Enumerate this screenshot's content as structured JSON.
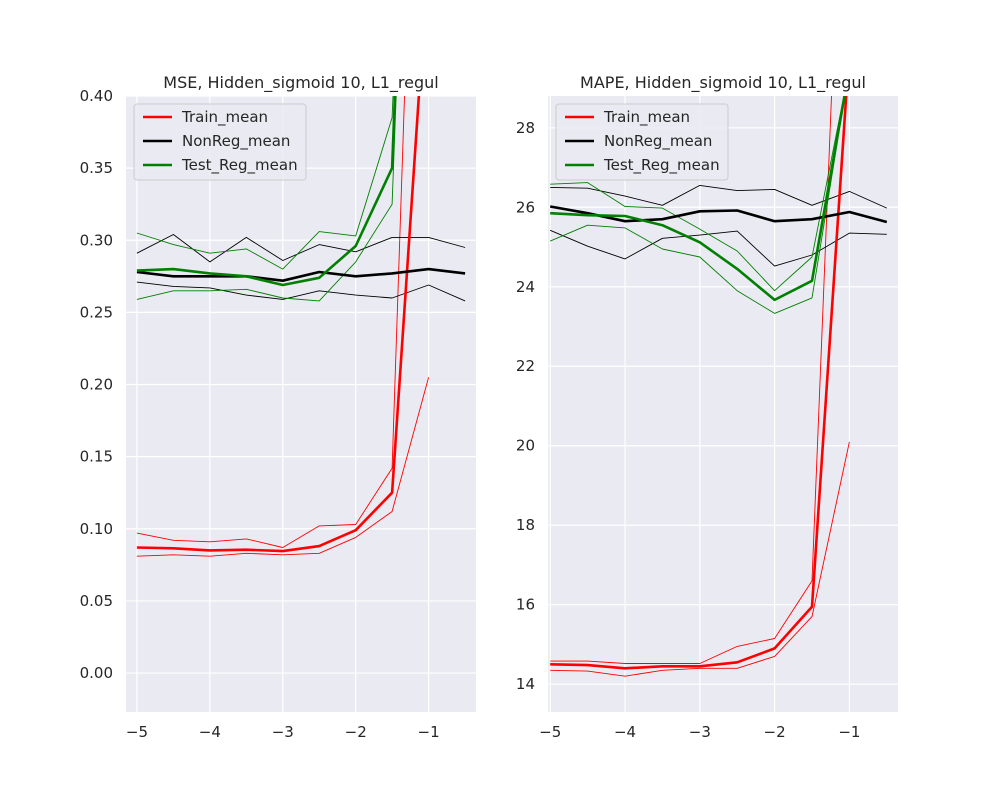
{
  "colors": {
    "background": "#ffffff",
    "plot_area": "#eaeaf2",
    "grid": "#ffffff",
    "text": "#262626",
    "train": "#ff0000",
    "nonreg": "#000000",
    "test": "#008000"
  },
  "chart_data": [
    {
      "type": "line",
      "title": "MSE, Hidden_sigmoid 10, L1_regul",
      "xlabel": "",
      "ylabel": "",
      "xlim": [
        -5.15,
        -0.35
      ],
      "ylim": [
        -0.027,
        0.4
      ],
      "xticks": [
        -5,
        -4,
        -3,
        -2,
        -1
      ],
      "xtick_labels": [
        "−5",
        "−4",
        "−3",
        "−2",
        "−1"
      ],
      "yticks": [
        0.0,
        0.05,
        0.1,
        0.15,
        0.2,
        0.25,
        0.3,
        0.35,
        0.4
      ],
      "ytick_labels": [
        "0.00",
        "0.05",
        "0.10",
        "0.15",
        "0.20",
        "0.25",
        "0.30",
        "0.35",
        "0.40"
      ],
      "grid": true,
      "legend_position": "top-left",
      "x": [
        -5,
        -4.5,
        -4,
        -3.5,
        -3,
        -2.5,
        -2,
        -1.5,
        -1,
        -0.5
      ],
      "series": [
        {
          "name": "Train_mean",
          "color": "#ff0000",
          "in_legend": true,
          "bold": true,
          "x": [
            -5,
            -4.5,
            -4,
            -3.5,
            -3,
            -2.5,
            -2,
            -1.5,
            -1
          ],
          "mean": [
            0.087,
            0.0865,
            0.085,
            0.0855,
            0.0845,
            0.088,
            0.099,
            0.125,
            0.5
          ],
          "upper": [
            0.097,
            0.092,
            0.091,
            0.093,
            0.087,
            0.102,
            0.103,
            0.142,
            0.9
          ],
          "lower": [
            0.081,
            0.082,
            0.081,
            0.083,
            0.082,
            0.083,
            0.094,
            0.112,
            0.205
          ]
        },
        {
          "name": "NonReg_mean",
          "color": "#000000",
          "in_legend": true,
          "bold": true,
          "x": [
            -5,
            -4.5,
            -4,
            -3.5,
            -3,
            -2.5,
            -2,
            -1.5,
            -1,
            -0.5
          ],
          "mean": [
            0.278,
            0.275,
            0.275,
            0.275,
            0.272,
            0.278,
            0.275,
            0.277,
            0.28,
            0.277
          ],
          "upper": [
            0.291,
            0.304,
            0.285,
            0.302,
            0.286,
            0.297,
            0.292,
            0.302,
            0.302,
            0.295
          ],
          "lower": [
            0.271,
            0.268,
            0.267,
            0.262,
            0.259,
            0.265,
            0.262,
            0.26,
            0.269,
            0.258
          ]
        },
        {
          "name": "Test_Reg_mean",
          "color": "#008000",
          "in_legend": true,
          "bold": true,
          "x": [
            -5,
            -4.5,
            -4,
            -3.5,
            -3,
            -2.5,
            -2,
            -1.5,
            -1
          ],
          "mean": [
            0.279,
            0.28,
            0.277,
            0.275,
            0.269,
            0.274,
            0.296,
            0.35,
            1.0
          ],
          "upper": [
            0.305,
            0.297,
            0.291,
            0.294,
            0.28,
            0.306,
            0.303,
            0.385,
            1.0
          ],
          "lower": [
            0.259,
            0.265,
            0.265,
            0.266,
            0.26,
            0.258,
            0.285,
            0.325,
            1.0
          ]
        }
      ]
    },
    {
      "type": "line",
      "title": "MAPE, Hidden_sigmoid 10, L1_regul",
      "xlabel": "",
      "ylabel": "",
      "xlim": [
        -5.03,
        -0.35
      ],
      "ylim": [
        13.3,
        28.8
      ],
      "xticks": [
        -5,
        -4,
        -3,
        -2,
        -1
      ],
      "xtick_labels": [
        "−5",
        "−4",
        "−3",
        "−2",
        "−1"
      ],
      "yticks": [
        14,
        16,
        18,
        20,
        22,
        24,
        26,
        28
      ],
      "ytick_labels": [
        "14",
        "16",
        "18",
        "20",
        "22",
        "24",
        "26",
        "28"
      ],
      "grid": true,
      "legend_position": "top-left",
      "series": [
        {
          "name": "Train_mean",
          "color": "#ff0000",
          "in_legend": true,
          "bold": true,
          "x": [
            -5,
            -4.5,
            -4,
            -3.5,
            -3,
            -2.5,
            -2,
            -1.5,
            -1
          ],
          "mean": [
            14.5,
            14.48,
            14.4,
            14.45,
            14.45,
            14.55,
            14.9,
            15.95,
            30
          ],
          "upper": [
            14.58,
            14.58,
            14.52,
            14.52,
            14.52,
            14.95,
            15.15,
            16.6,
            40
          ],
          "lower": [
            14.35,
            14.33,
            14.2,
            14.35,
            14.4,
            14.4,
            14.7,
            15.7,
            20.1
          ]
        },
        {
          "name": "NonReg_mean",
          "color": "#000000",
          "in_legend": true,
          "bold": true,
          "x": [
            -5,
            -4.5,
            -4,
            -3.5,
            -3,
            -2.5,
            -2,
            -1.5,
            -1,
            -0.5
          ],
          "mean": [
            26.02,
            25.85,
            25.65,
            25.7,
            25.9,
            25.92,
            25.65,
            25.7,
            25.88,
            25.63
          ],
          "upper": [
            26.5,
            26.48,
            26.28,
            26.05,
            26.55,
            26.42,
            26.45,
            26.05,
            26.4,
            25.98
          ],
          "lower": [
            25.42,
            25.02,
            24.7,
            25.22,
            25.3,
            25.4,
            24.52,
            24.8,
            25.35,
            25.32
          ]
        },
        {
          "name": "Test_Reg_mean",
          "color": "#008000",
          "in_legend": true,
          "bold": true,
          "x": [
            -5,
            -4.5,
            -4,
            -3.5,
            -3,
            -2.5,
            -2,
            -1.5,
            -1
          ],
          "mean": [
            25.85,
            25.8,
            25.78,
            25.55,
            25.12,
            24.45,
            23.67,
            24.15,
            29.5
          ],
          "upper": [
            26.58,
            26.62,
            26.02,
            25.98,
            25.45,
            24.9,
            23.9,
            24.75,
            29.5
          ],
          "lower": [
            25.15,
            25.55,
            25.48,
            24.95,
            24.75,
            23.9,
            23.33,
            23.72,
            29.5
          ]
        }
      ]
    }
  ]
}
